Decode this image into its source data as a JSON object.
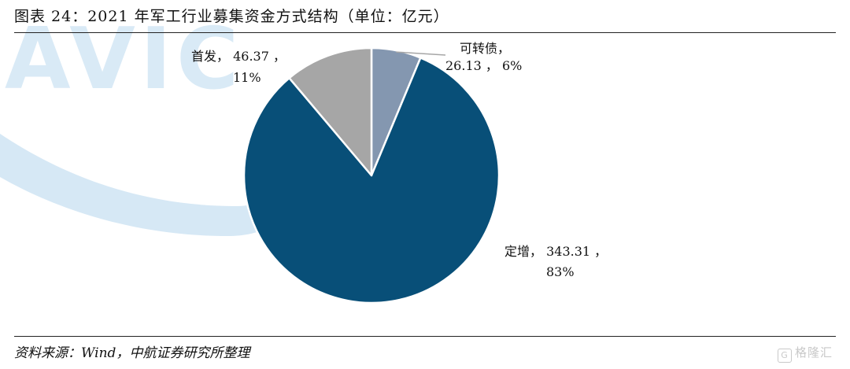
{
  "header": {
    "title": "图表 24：2021 年军工行业募集资金方式结构（单位：亿元）"
  },
  "footer": {
    "source": "资料来源：Wind，中航证券研究所整理"
  },
  "watermark": {
    "text": "AVIC",
    "brand": "格隆汇",
    "brand_icon": "gelonghui-logo-icon"
  },
  "chart_data": {
    "type": "pie",
    "start_angle_deg": 0,
    "direction": "clockwise",
    "slices": [
      {
        "name": "可转债",
        "value": 26.13,
        "percent": "6%",
        "label_value": "26.13",
        "color": "#8497B0"
      },
      {
        "name": "定增",
        "value": 343.31,
        "percent": "83%",
        "label_value": "343.31",
        "color": "#084F78"
      },
      {
        "name": "首发",
        "value": 46.37,
        "percent": "11%",
        "label_value": "46.37",
        "color": "#A6A6A6"
      }
    ]
  }
}
